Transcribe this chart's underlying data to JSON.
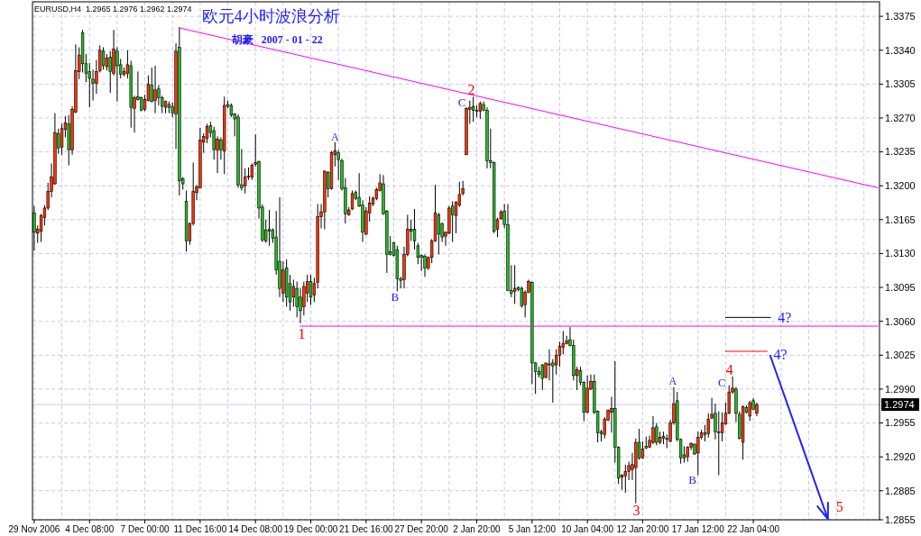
{
  "chart_data": {
    "type": "candlestick",
    "title": "欧元4小时波浪分析",
    "subtitle": "胡豪   2007 - 01 - 22",
    "categories": [
      "29 Nov 2006",
      null,
      null,
      null,
      null,
      null,
      null,
      null,
      null,
      null,
      null,
      null,
      null,
      null,
      null,
      null,
      "4 Dec 08:00",
      null,
      null,
      null,
      null,
      null,
      null,
      null,
      null,
      null,
      null,
      null,
      null,
      null,
      null,
      null,
      "7 Dec 00:00",
      null,
      null,
      null,
      null,
      null,
      null,
      null,
      null,
      null,
      null,
      null,
      null,
      null,
      null,
      null,
      "11 Dec 16:00",
      null,
      null,
      null,
      null,
      null,
      null,
      null,
      null,
      null,
      null,
      null,
      null,
      null,
      null,
      null,
      "14 Dec 08:00",
      null,
      null,
      null,
      null,
      null,
      null,
      null,
      null,
      null,
      null,
      null,
      null,
      null,
      null,
      null,
      "19 Dec 00:00",
      null,
      null,
      null,
      null,
      null,
      null,
      null,
      null,
      null,
      null,
      null,
      null,
      null,
      null,
      null,
      "21 Dec 16:00",
      null,
      null,
      null,
      null,
      null,
      null,
      null,
      null,
      null,
      null,
      null,
      null,
      null,
      null,
      null,
      "27 Dec 20:00",
      null,
      null,
      null,
      null,
      null,
      null,
      null,
      null,
      null,
      null,
      null,
      null,
      null,
      null,
      null,
      "2 Jan 20:00",
      null,
      null,
      null,
      null,
      null,
      null,
      null,
      null,
      null,
      null,
      null,
      null,
      null,
      null,
      null,
      "5 Jan 12:00",
      null,
      null,
      null,
      null,
      null,
      null,
      null,
      null,
      null,
      null,
      null,
      null,
      null,
      null,
      null,
      "10 Jan 04:00",
      null,
      null,
      null,
      null,
      null,
      null,
      null,
      null,
      null,
      null,
      null,
      null,
      null,
      null,
      null,
      "12 Jan 20:00",
      null,
      null,
      null,
      null,
      null,
      null,
      null,
      null,
      null,
      null,
      null,
      null,
      null,
      null,
      null,
      "17 Jan 12:00",
      null,
      null,
      null,
      null,
      null,
      null,
      null,
      null,
      null,
      null,
      null,
      null,
      null,
      null,
      null,
      "22 Jan 04:00",
      null,
      null,
      null,
      null,
      null,
      null,
      null,
      null,
      null,
      null,
      null,
      null,
      null,
      null,
      null,
      null,
      null,
      null,
      null,
      null,
      null,
      null,
      null,
      null,
      null,
      null,
      null,
      null,
      null,
      null,
      null,
      null,
      null,
      null,
      null,
      null
    ],
    "ylim": [
      1.2855,
      1.339
    ],
    "yticks": [
      1.2855,
      1.2885,
      {
        "value": 1.292,
        "label": "1.2920"
      },
      1.2955,
      {
        "value": 1.299,
        "label": "1.2990"
      },
      1.3025,
      {
        "value": 1.306,
        "label": "1.3060"
      },
      1.3095,
      {
        "value": 1.313,
        "label": "1.3130"
      },
      1.3165,
      {
        "value": 1.32,
        "label": "1.3200"
      },
      1.3235,
      {
        "value": 1.327,
        "label": "1.3270"
      },
      1.3305,
      {
        "value": 1.334,
        "label": "1.3340"
      },
      1.3375
    ],
    "grid": true,
    "ohlc": [
      [
        1.3172,
        1.3179,
        1.3133,
        1.3152
      ],
      [
        1.3151,
        1.3159,
        1.3141,
        1.3155
      ],
      [
        1.3153,
        1.3171,
        1.3142,
        1.3169
      ],
      [
        1.3167,
        1.318,
        1.3159,
        1.3177
      ],
      [
        1.3177,
        1.3203,
        1.3175,
        1.3194
      ],
      [
        1.3194,
        1.3223,
        1.3188,
        1.3209
      ],
      [
        1.3202,
        1.3275,
        1.3201,
        1.3255
      ],
      [
        1.3254,
        1.3259,
        1.3233,
        1.3239
      ],
      [
        1.324,
        1.3264,
        1.3232,
        1.3259
      ],
      [
        1.3258,
        1.3272,
        1.325,
        1.3265
      ],
      [
        1.3264,
        1.3273,
        1.3221,
        1.3237
      ],
      [
        1.3237,
        1.3282,
        1.3232,
        1.3279
      ],
      [
        1.3276,
        1.3346,
        1.3275,
        1.3319
      ],
      [
        1.3318,
        1.3343,
        1.331,
        1.3335
      ],
      [
        1.3358,
        1.3361,
        1.3317,
        1.3326
      ],
      [
        1.3326,
        1.3336,
        1.3307,
        1.3316
      ],
      [
        1.3318,
        1.3327,
        1.3281,
        1.3311
      ],
      [
        1.331,
        1.332,
        1.3288,
        1.3306
      ],
      [
        1.3306,
        1.333,
        1.3295,
        1.3318
      ],
      [
        1.3319,
        1.3345,
        1.3317,
        1.334
      ],
      [
        1.3339,
        1.3343,
        1.332,
        1.3324
      ],
      [
        1.3323,
        1.3336,
        1.3319,
        1.3332
      ],
      [
        1.3333,
        1.3339,
        1.3296,
        1.3318
      ],
      [
        1.3316,
        1.3361,
        1.3314,
        1.3341
      ],
      [
        1.3339,
        1.3343,
        1.3287,
        1.3324
      ],
      [
        1.3325,
        1.3331,
        1.3311,
        1.3315
      ],
      [
        1.3315,
        1.3322,
        1.3313,
        1.3318
      ],
      [
        1.3316,
        1.334,
        1.3311,
        1.3325
      ],
      [
        1.3324,
        1.3329,
        1.326,
        1.3281
      ],
      [
        1.328,
        1.3293,
        1.3255,
        1.3291
      ],
      [
        1.3292,
        1.3318,
        1.3288,
        1.3289
      ],
      [
        1.3291,
        1.3292,
        1.3277,
        1.3278
      ],
      [
        1.3279,
        1.3294,
        1.3277,
        1.3289
      ],
      [
        1.3288,
        1.3314,
        1.3287,
        1.3305
      ],
      [
        1.3304,
        1.3322,
        1.3286,
        1.3287
      ],
      [
        1.3288,
        1.3324,
        1.3275,
        1.3299
      ],
      [
        1.33,
        1.3304,
        1.3283,
        1.3291
      ],
      [
        1.3291,
        1.3293,
        1.3275,
        1.3282
      ],
      [
        1.3281,
        1.3288,
        1.3275,
        1.3287
      ],
      [
        1.3284,
        1.3287,
        1.3275,
        1.3281
      ],
      [
        1.3282,
        1.3286,
        1.3271,
        1.3275
      ],
      [
        1.3274,
        1.3347,
        1.3238,
        1.3339
      ],
      [
        1.3343,
        1.3364,
        1.319,
        1.3205
      ],
      [
        1.3207,
        1.3209,
        1.3196,
        1.3202
      ],
      [
        1.3184,
        1.3195,
        1.3132,
        1.3143
      ],
      [
        1.3143,
        1.3162,
        1.3139,
        1.3161
      ],
      [
        1.3161,
        1.3224,
        1.3159,
        1.3194
      ],
      [
        1.3193,
        1.3201,
        1.3185,
        1.3199
      ],
      [
        1.3198,
        1.326,
        1.3197,
        1.3247
      ],
      [
        1.3245,
        1.3254,
        1.3234,
        1.3251
      ],
      [
        1.3249,
        1.3264,
        1.3244,
        1.3261
      ],
      [
        1.3262,
        1.3266,
        1.325,
        1.3255
      ],
      [
        1.3257,
        1.3261,
        1.3227,
        1.3237
      ],
      [
        1.3237,
        1.3251,
        1.3213,
        1.3248
      ],
      [
        1.3247,
        1.325,
        1.3227,
        1.3237
      ],
      [
        1.3236,
        1.3292,
        1.3212,
        1.3283
      ],
      [
        1.3284,
        1.3288,
        1.328,
        1.3282
      ],
      [
        1.3283,
        1.3285,
        1.3271,
        1.3273
      ],
      [
        1.3274,
        1.3275,
        1.3251,
        1.3269
      ],
      [
        1.3271,
        1.3274,
        1.3198,
        1.3201
      ],
      [
        1.3201,
        1.3238,
        1.3195,
        1.3198
      ],
      [
        1.32,
        1.3218,
        1.3192,
        1.3209
      ],
      [
        1.3209,
        1.3219,
        1.3206,
        1.321
      ],
      [
        1.3209,
        1.3223,
        1.3206,
        1.3221
      ],
      [
        1.3222,
        1.3253,
        1.322,
        1.3224
      ],
      [
        1.3225,
        1.3226,
        1.3166,
        1.3177
      ],
      [
        1.3178,
        1.3181,
        1.3142,
        1.3144
      ],
      [
        1.3154,
        1.3165,
        1.3141,
        1.3143
      ],
      [
        1.3155,
        1.3175,
        1.3138,
        1.3153
      ],
      [
        1.3154,
        1.3156,
        1.3141,
        1.3146
      ],
      [
        1.3147,
        1.3174,
        1.3108,
        1.3113
      ],
      [
        1.3122,
        1.3188,
        1.3085,
        1.3094
      ],
      [
        1.3089,
        1.3122,
        1.308,
        1.3113
      ],
      [
        1.3115,
        1.3124,
        1.3075,
        1.3085
      ],
      [
        1.3099,
        1.3108,
        1.3071,
        1.308
      ],
      [
        1.3085,
        1.3103,
        1.3075,
        1.3096
      ],
      [
        1.3094,
        1.3101,
        1.3064,
        1.3075
      ],
      [
        1.3085,
        1.3094,
        1.3058,
        1.3071
      ],
      [
        1.3075,
        1.3101,
        1.3066,
        1.3096
      ],
      [
        1.3089,
        1.3108,
        1.308,
        1.3101
      ],
      [
        1.3101,
        1.3108,
        1.3077,
        1.3085
      ],
      [
        1.3087,
        1.3105,
        1.308,
        1.3099
      ],
      [
        1.31,
        1.3181,
        1.3094,
        1.3168
      ],
      [
        1.3168,
        1.3181,
        1.3156,
        1.3173
      ],
      [
        1.3173,
        1.3216,
        1.3155,
        1.3215
      ],
      [
        1.3214,
        1.3215,
        1.3188,
        1.3197
      ],
      [
        1.3197,
        1.3236,
        1.3196,
        1.3234
      ],
      [
        1.3232,
        1.3245,
        1.322,
        1.3236
      ],
      [
        1.3234,
        1.3237,
        1.3206,
        1.3227
      ],
      [
        1.3226,
        1.3228,
        1.3195,
        1.3197
      ],
      [
        1.3198,
        1.3208,
        1.3161,
        1.3171
      ],
      [
        1.317,
        1.3178,
        1.3169,
        1.3175
      ],
      [
        1.3176,
        1.3195,
        1.3175,
        1.3192
      ],
      [
        1.3193,
        1.3195,
        1.3185,
        1.3187
      ],
      [
        1.3188,
        1.3213,
        1.3178,
        1.3179
      ],
      [
        1.318,
        1.3185,
        1.3142,
        1.3152
      ],
      [
        1.315,
        1.3178,
        1.3149,
        1.3174
      ],
      [
        1.3172,
        1.3189,
        1.3163,
        1.3182
      ],
      [
        1.3181,
        1.3189,
        1.3179,
        1.3187
      ],
      [
        1.3187,
        1.3198,
        1.3185,
        1.3196
      ],
      [
        1.3195,
        1.3212,
        1.3194,
        1.3203
      ],
      [
        1.3202,
        1.3211,
        1.317,
        1.3171
      ],
      [
        1.3174,
        1.3175,
        1.311,
        1.3129
      ],
      [
        1.3132,
        1.3148,
        1.3128,
        1.3129
      ],
      [
        1.3141,
        1.3142,
        1.3127,
        1.3128
      ],
      [
        1.3134,
        1.3138,
        1.3091,
        1.3104
      ],
      [
        1.3104,
        1.3106,
        1.3094,
        1.3102
      ],
      [
        1.3103,
        1.3137,
        1.3094,
        1.3129
      ],
      [
        1.3129,
        1.317,
        1.3127,
        1.3155
      ],
      [
        1.3155,
        1.3165,
        1.3143,
        1.3153
      ],
      [
        1.3155,
        1.3176,
        1.3134,
        1.3143
      ],
      [
        1.3138,
        1.3141,
        1.3119,
        1.3126
      ],
      [
        1.3128,
        1.3129,
        1.3112,
        1.3126
      ],
      [
        1.3127,
        1.3129,
        1.3106,
        1.3115
      ],
      [
        1.3115,
        1.3127,
        1.3113,
        1.3126
      ],
      [
        1.3126,
        1.3145,
        1.312,
        1.3143
      ],
      [
        1.3143,
        1.3201,
        1.3142,
        1.3172
      ],
      [
        1.317,
        1.3172,
        1.3129,
        1.315
      ],
      [
        1.3161,
        1.3162,
        1.3142,
        1.3147
      ],
      [
        1.3148,
        1.3153,
        1.3138,
        1.3152
      ],
      [
        1.3151,
        1.3179,
        1.315,
        1.3177
      ],
      [
        1.3179,
        1.3184,
        1.3142,
        1.317
      ],
      [
        1.3169,
        1.3184,
        1.3151,
        1.3183
      ],
      [
        1.318,
        1.3204,
        1.3178,
        1.3191
      ],
      [
        1.3192,
        1.3205,
        1.319,
        1.3197
      ],
      [
        1.3232,
        1.3281,
        1.3232,
        1.328
      ],
      [
        1.3279,
        1.3288,
        1.3264,
        1.3281
      ],
      [
        1.3282,
        1.3292,
        1.3266,
        1.3278
      ],
      [
        1.3278,
        1.3283,
        1.3271,
        1.3277
      ],
      [
        1.3277,
        1.3287,
        1.3269,
        1.3285
      ],
      [
        1.3284,
        1.3287,
        1.3277,
        1.3278
      ],
      [
        1.3278,
        1.3281,
        1.3218,
        1.3226
      ],
      [
        1.3226,
        1.3259,
        1.3218,
        1.3224
      ],
      [
        1.3224,
        1.3225,
        1.3151,
        1.3153
      ],
      [
        1.3155,
        1.3167,
        1.3147,
        1.3165
      ],
      [
        1.3166,
        1.3175,
        1.3165,
        1.3173
      ],
      [
        1.3174,
        1.3181,
        1.3156,
        1.316
      ],
      [
        1.316,
        1.3181,
        1.3091,
        1.3092
      ],
      [
        1.3092,
        1.3118,
        1.3085,
        1.3089
      ],
      [
        1.3091,
        1.3118,
        1.3078,
        1.3094
      ],
      [
        1.3095,
        1.3096,
        1.3091,
        1.3093
      ],
      [
        1.3094,
        1.3096,
        1.3074,
        1.3076
      ],
      [
        1.3077,
        1.3092,
        1.3064,
        1.309
      ],
      [
        1.309,
        1.3103,
        1.3089,
        1.3101
      ],
      [
        1.31,
        1.3101,
        1.2995,
        1.3017
      ],
      [
        1.3017,
        1.3018,
        1.2985,
        1.3008
      ],
      [
        1.3008,
        1.3013,
        1.3002,
        1.3005
      ],
      [
        1.3015,
        1.3016,
        1.2989,
        1.3001
      ],
      [
        1.3002,
        1.3017,
        1.3001,
        1.3017
      ],
      [
        1.3016,
        1.3031,
        1.2999,
        1.3015
      ],
      [
        1.3017,
        1.3021,
        1.2976,
        1.3014
      ],
      [
        1.3015,
        1.3031,
        1.3005,
        1.3025
      ],
      [
        1.3025,
        1.3039,
        1.3013,
        1.3034
      ],
      [
        1.3033,
        1.305,
        1.3026,
        1.3037
      ],
      [
        1.3037,
        1.3045,
        1.3036,
        1.304
      ],
      [
        1.3041,
        1.3054,
        1.3034,
        1.3035
      ],
      [
        1.3035,
        1.3041,
        1.2999,
        1.3004
      ],
      [
        1.3004,
        1.3013,
        1.2989,
        1.301
      ],
      [
        1.3009,
        1.3013,
        1.2994,
        1.2997
      ],
      [
        1.2997,
        1.2998,
        1.2957,
        1.2966
      ],
      [
        1.2966,
        1.3004,
        1.2965,
        1.2991
      ],
      [
        1.299,
        1.3005,
        1.2989,
        1.2998
      ],
      [
        1.2998,
        1.3005,
        1.2964,
        1.2966
      ],
      [
        1.2967,
        1.2968,
        1.2935,
        1.2945
      ],
      [
        1.2946,
        1.2948,
        1.2936,
        1.2944
      ],
      [
        1.2943,
        1.2961,
        1.2939,
        1.2959
      ],
      [
        1.2958,
        1.2969,
        1.2957,
        1.2968
      ],
      [
        1.2966,
        1.2982,
        1.2945,
        1.297
      ],
      [
        1.297,
        1.3019,
        1.2914,
        1.293
      ],
      [
        1.293,
        1.2931,
        1.2892,
        1.2898
      ],
      [
        1.2899,
        1.2902,
        1.2886,
        1.2901
      ],
      [
        1.29,
        1.2912,
        1.2883,
        1.2905
      ],
      [
        1.2905,
        1.2915,
        1.2896,
        1.2911
      ],
      [
        1.2907,
        1.2924,
        1.2896,
        1.2912
      ],
      [
        1.2909,
        1.2939,
        1.2872,
        1.2935
      ],
      [
        1.2935,
        1.2949,
        1.2917,
        1.2919
      ],
      [
        1.2919,
        1.2936,
        1.2918,
        1.2928
      ],
      [
        1.2931,
        1.2941,
        1.2928,
        1.2929
      ],
      [
        1.293,
        1.2942,
        1.2929,
        1.2937
      ],
      [
        1.2935,
        1.2962,
        1.2933,
        1.295
      ],
      [
        1.2951,
        1.2955,
        1.2932,
        1.2935
      ],
      [
        1.2935,
        1.2946,
        1.2933,
        1.294
      ],
      [
        1.2941,
        1.2946,
        1.2933,
        1.2939
      ],
      [
        1.2939,
        1.2943,
        1.2929,
        1.2938
      ],
      [
        1.2936,
        1.2958,
        1.2935,
        1.2955
      ],
      [
        1.2955,
        1.2992,
        1.2953,
        1.2975
      ],
      [
        1.2978,
        1.2987,
        1.2936,
        1.2938
      ],
      [
        1.2938,
        1.2939,
        1.2913,
        1.2919
      ],
      [
        1.2922,
        1.2931,
        1.2914,
        1.2919
      ],
      [
        1.292,
        1.2931,
        1.2915,
        1.293
      ],
      [
        1.293,
        1.2935,
        1.2927,
        1.2934
      ],
      [
        1.2933,
        1.2934,
        1.2922,
        1.2923
      ],
      [
        1.2924,
        1.2946,
        1.2901,
        1.294
      ],
      [
        1.294,
        1.2948,
        1.2938,
        1.2945
      ],
      [
        1.2945,
        1.2953,
        1.2936,
        1.2943
      ],
      [
        1.2944,
        1.2965,
        1.294,
        1.2959
      ],
      [
        1.296,
        1.2981,
        1.2959,
        1.2964
      ],
      [
        1.2965,
        1.2975,
        1.2938,
        1.2946
      ],
      [
        1.2946,
        1.2967,
        1.2901,
        1.2945
      ],
      [
        1.2945,
        1.2966,
        1.2936,
        1.2955
      ],
      [
        1.2954,
        1.2976,
        1.2953,
        1.2965
      ],
      [
        1.2965,
        1.2994,
        1.2964,
        1.2987
      ],
      [
        1.2987,
        1.3003,
        1.2985,
        1.2991
      ],
      [
        1.299,
        1.2992,
        1.2956,
        1.2965
      ],
      [
        1.2964,
        1.2967,
        1.2938,
        1.2939
      ],
      [
        1.2935,
        1.2973,
        1.2917,
        1.2972
      ],
      [
        1.2971,
        1.2973,
        1.2965,
        1.2966
      ],
      [
        1.2962,
        1.2978,
        1.2957,
        1.2976
      ],
      [
        1.2978,
        1.2981,
        1.2968,
        1.2969
      ],
      [
        1.2965,
        1.2976,
        1.2962,
        1.2974
      ],
      null,
      null,
      null,
      null,
      null,
      null,
      null,
      null,
      null,
      null,
      null,
      null,
      null,
      null,
      null,
      null,
      null,
      null,
      null,
      null,
      null,
      null,
      null,
      null,
      null,
      null,
      null,
      null,
      null,
      null,
      null,
      null,
      null,
      null,
      null
    ],
    "series": [
      {
        "type": "line",
        "color": "#ff00ff",
        "values": [
          null,
          null,
          null,
          null,
          null,
          null,
          null,
          null,
          null,
          null,
          null,
          null,
          null,
          null,
          null,
          null,
          null,
          null,
          null,
          null,
          null,
          null,
          null,
          null,
          null,
          null,
          null,
          null,
          null,
          null,
          null,
          null,
          null,
          null,
          null,
          null,
          null,
          null,
          null,
          null,
          null,
          null,
          1.3363,
          null,
          null,
          null,
          null,
          null,
          null,
          null,
          null,
          null,
          null,
          null,
          null,
          null,
          null,
          null,
          null,
          null,
          null,
          null,
          null,
          null,
          null,
          null,
          null,
          null,
          null,
          null,
          null,
          null,
          null,
          null,
          null,
          null,
          null,
          null,
          null,
          null,
          null,
          null,
          null,
          null,
          null,
          null,
          null,
          null,
          null,
          null,
          null,
          null,
          null,
          null,
          null,
          null,
          null,
          null,
          null,
          null,
          null,
          null,
          null,
          null,
          null,
          null,
          null,
          null,
          null,
          null,
          null,
          null,
          null,
          null,
          null,
          null,
          null,
          null,
          null,
          null,
          null,
          null,
          null,
          null,
          null,
          null,
          null,
          null,
          null,
          null,
          null,
          null,
          null,
          null,
          null,
          null,
          null,
          null,
          null,
          null,
          null,
          null,
          null,
          null,
          null,
          null,
          null,
          null,
          null,
          null,
          null,
          null,
          null,
          null,
          null,
          null,
          null,
          null,
          null,
          null,
          null,
          null,
          null,
          null,
          null,
          null,
          null,
          null,
          null,
          null,
          null,
          null,
          null,
          null,
          null,
          null,
          null,
          null,
          null,
          null,
          null,
          null,
          null,
          null,
          null,
          null,
          null,
          null,
          null,
          null,
          null,
          null,
          null,
          null,
          null,
          null,
          null,
          null,
          null,
          null,
          null,
          null,
          null,
          null,
          null,
          null,
          null,
          null,
          null,
          null,
          null,
          null,
          null,
          null,
          null,
          null,
          null,
          null,
          null,
          null,
          null,
          null,
          null,
          null,
          null,
          null,
          null,
          null,
          null,
          null,
          null,
          null,
          null,
          null,
          null,
          null,
          null,
          null,
          null,
          null,
          null,
          null,
          null,
          null,
          1.3198
        ]
      },
      {
        "type": "line",
        "color": "#ff00ff",
        "values": [
          null,
          null,
          null,
          null,
          null,
          null,
          null,
          null,
          null,
          null,
          null,
          null,
          null,
          null,
          null,
          null,
          null,
          null,
          null,
          null,
          null,
          null,
          null,
          null,
          null,
          null,
          null,
          null,
          null,
          null,
          null,
          null,
          null,
          null,
          null,
          null,
          null,
          null,
          null,
          null,
          null,
          null,
          null,
          null,
          null,
          null,
          null,
          null,
          null,
          null,
          null,
          null,
          null,
          null,
          null,
          null,
          null,
          null,
          null,
          null,
          null,
          null,
          null,
          null,
          null,
          null,
          null,
          null,
          null,
          null,
          null,
          null,
          null,
          null,
          null,
          null,
          null,
          1.3055,
          null,
          null,
          null,
          null,
          null,
          null,
          null,
          null,
          null,
          null,
          null,
          null,
          null,
          null,
          null,
          null,
          null,
          null,
          null,
          null,
          null,
          null,
          null,
          null,
          null,
          null,
          null,
          null,
          null,
          null,
          null,
          null,
          null,
          null,
          null,
          null,
          null,
          null,
          null,
          null,
          null,
          null,
          null,
          null,
          null,
          null,
          null,
          null,
          null,
          null,
          null,
          null,
          null,
          null,
          null,
          null,
          null,
          null,
          null,
          null,
          null,
          null,
          null,
          null,
          null,
          null,
          null,
          null,
          null,
          null,
          null,
          null,
          null,
          null,
          null,
          null,
          null,
          null,
          null,
          null,
          null,
          null,
          null,
          null,
          null,
          null,
          null,
          null,
          null,
          null,
          null,
          null,
          null,
          null,
          null,
          null,
          null,
          null,
          null,
          null,
          null,
          null,
          null,
          null,
          null,
          null,
          null,
          null,
          null,
          null,
          null,
          null,
          null,
          null,
          null,
          null,
          null,
          null,
          null,
          null,
          null,
          null,
          null,
          null,
          null,
          null,
          null,
          null,
          null,
          null,
          null,
          null,
          null,
          null,
          null,
          null,
          null,
          null,
          null,
          null,
          null,
          null,
          null,
          null,
          null,
          null,
          null,
          null,
          null,
          null,
          null,
          null,
          null,
          null,
          null,
          null,
          null,
          null,
          null,
          null,
          null,
          null,
          null,
          null,
          null,
          null,
          1.3055
        ]
      },
      {
        "type": "line",
        "color": "#000000",
        "values": [
          null,
          null,
          null,
          null,
          null,
          null,
          null,
          null,
          null,
          null,
          null,
          null,
          null,
          null,
          null,
          null,
          null,
          null,
          null,
          null,
          null,
          null,
          null,
          null,
          null,
          null,
          null,
          null,
          null,
          null,
          null,
          null,
          null,
          null,
          null,
          null,
          null,
          null,
          null,
          null,
          null,
          null,
          null,
          null,
          null,
          null,
          null,
          null,
          null,
          null,
          null,
          null,
          null,
          null,
          null,
          null,
          null,
          null,
          null,
          null,
          null,
          null,
          null,
          null,
          null,
          null,
          null,
          null,
          null,
          null,
          null,
          null,
          null,
          null,
          null,
          null,
          null,
          null,
          null,
          null,
          null,
          null,
          null,
          null,
          null,
          null,
          null,
          null,
          null,
          null,
          null,
          null,
          null,
          null,
          null,
          null,
          null,
          null,
          null,
          null,
          null,
          null,
          null,
          null,
          null,
          null,
          null,
          null,
          null,
          null,
          null,
          null,
          null,
          null,
          null,
          null,
          null,
          null,
          null,
          null,
          null,
          null,
          null,
          null,
          null,
          null,
          null,
          null,
          null,
          null,
          null,
          null,
          null,
          null,
          null,
          null,
          null,
          null,
          null,
          null,
          null,
          null,
          null,
          null,
          null,
          null,
          null,
          null,
          null,
          null,
          null,
          null,
          null,
          null,
          null,
          null,
          null,
          null,
          null,
          null,
          null,
          null,
          null,
          null,
          null,
          null,
          null,
          null,
          null,
          null,
          null,
          null,
          null,
          null,
          null,
          null,
          null,
          null,
          null,
          null,
          null,
          null,
          null,
          null,
          null,
          null,
          null,
          null,
          null,
          null,
          null,
          null,
          null,
          null,
          null,
          null,
          null,
          null,
          null,
          null,
          1.3064,
          null,
          null,
          null,
          null,
          null,
          null,
          null,
          null,
          null,
          null,
          null,
          null,
          1.3064,
          null,
          null,
          null,
          null,
          null,
          null,
          null,
          null,
          null,
          null,
          null,
          null,
          null,
          null,
          null,
          null,
          null,
          null,
          null,
          null,
          null,
          null,
          null,
          null,
          null,
          null,
          null,
          null,
          null,
          null,
          null
        ]
      },
      {
        "type": "line",
        "color": "#ff0000",
        "values": [
          null,
          null,
          null,
          null,
          null,
          null,
          null,
          null,
          null,
          null,
          null,
          null,
          null,
          null,
          null,
          null,
          null,
          null,
          null,
          null,
          null,
          null,
          null,
          null,
          null,
          null,
          null,
          null,
          null,
          null,
          null,
          null,
          null,
          null,
          null,
          null,
          null,
          null,
          null,
          null,
          null,
          null,
          null,
          null,
          null,
          null,
          null,
          null,
          null,
          null,
          null,
          null,
          null,
          null,
          null,
          null,
          null,
          null,
          null,
          null,
          null,
          null,
          null,
          null,
          null,
          null,
          null,
          null,
          null,
          null,
          null,
          null,
          null,
          null,
          null,
          null,
          null,
          null,
          null,
          null,
          null,
          null,
          null,
          null,
          null,
          null,
          null,
          null,
          null,
          null,
          null,
          null,
          null,
          null,
          null,
          null,
          null,
          null,
          null,
          null,
          null,
          null,
          null,
          null,
          null,
          null,
          null,
          null,
          null,
          null,
          null,
          null,
          null,
          null,
          null,
          null,
          null,
          null,
          null,
          null,
          null,
          null,
          null,
          null,
          null,
          null,
          null,
          null,
          null,
          null,
          null,
          null,
          null,
          null,
          null,
          null,
          null,
          null,
          null,
          null,
          null,
          null,
          null,
          null,
          null,
          null,
          null,
          null,
          null,
          null,
          null,
          null,
          null,
          null,
          null,
          null,
          null,
          null,
          null,
          null,
          null,
          null,
          null,
          null,
          null,
          null,
          null,
          null,
          null,
          null,
          null,
          null,
          null,
          null,
          null,
          null,
          null,
          null,
          null,
          null,
          null,
          null,
          null,
          null,
          null,
          null,
          null,
          null,
          null,
          null,
          null,
          null,
          null,
          null,
          null,
          null,
          null,
          null,
          null,
          null,
          1.3029,
          null,
          null,
          null,
          null,
          null,
          null,
          null,
          null,
          null,
          null,
          null,
          1.3029,
          null,
          null,
          null,
          null,
          null,
          null,
          null,
          null,
          null,
          null,
          null,
          null,
          null,
          null,
          null,
          null,
          null,
          null,
          null,
          null,
          null,
          null,
          null,
          null,
          null,
          null,
          null,
          null,
          null,
          null,
          null,
          null
        ]
      }
    ],
    "ref_lines": [
      {
        "axis": "y",
        "value": 1.2974,
        "label": "1.2974",
        "color": "#c8c8f0"
      }
    ],
    "annotations": [
      "EURUSD,H4  1.2965 1.2976 1.2962 1.2974",
      "1",
      "A",
      "B",
      "C",
      "2",
      "3",
      "A",
      "B",
      "C",
      "4",
      "4?",
      "4?",
      "5"
    ]
  }
}
